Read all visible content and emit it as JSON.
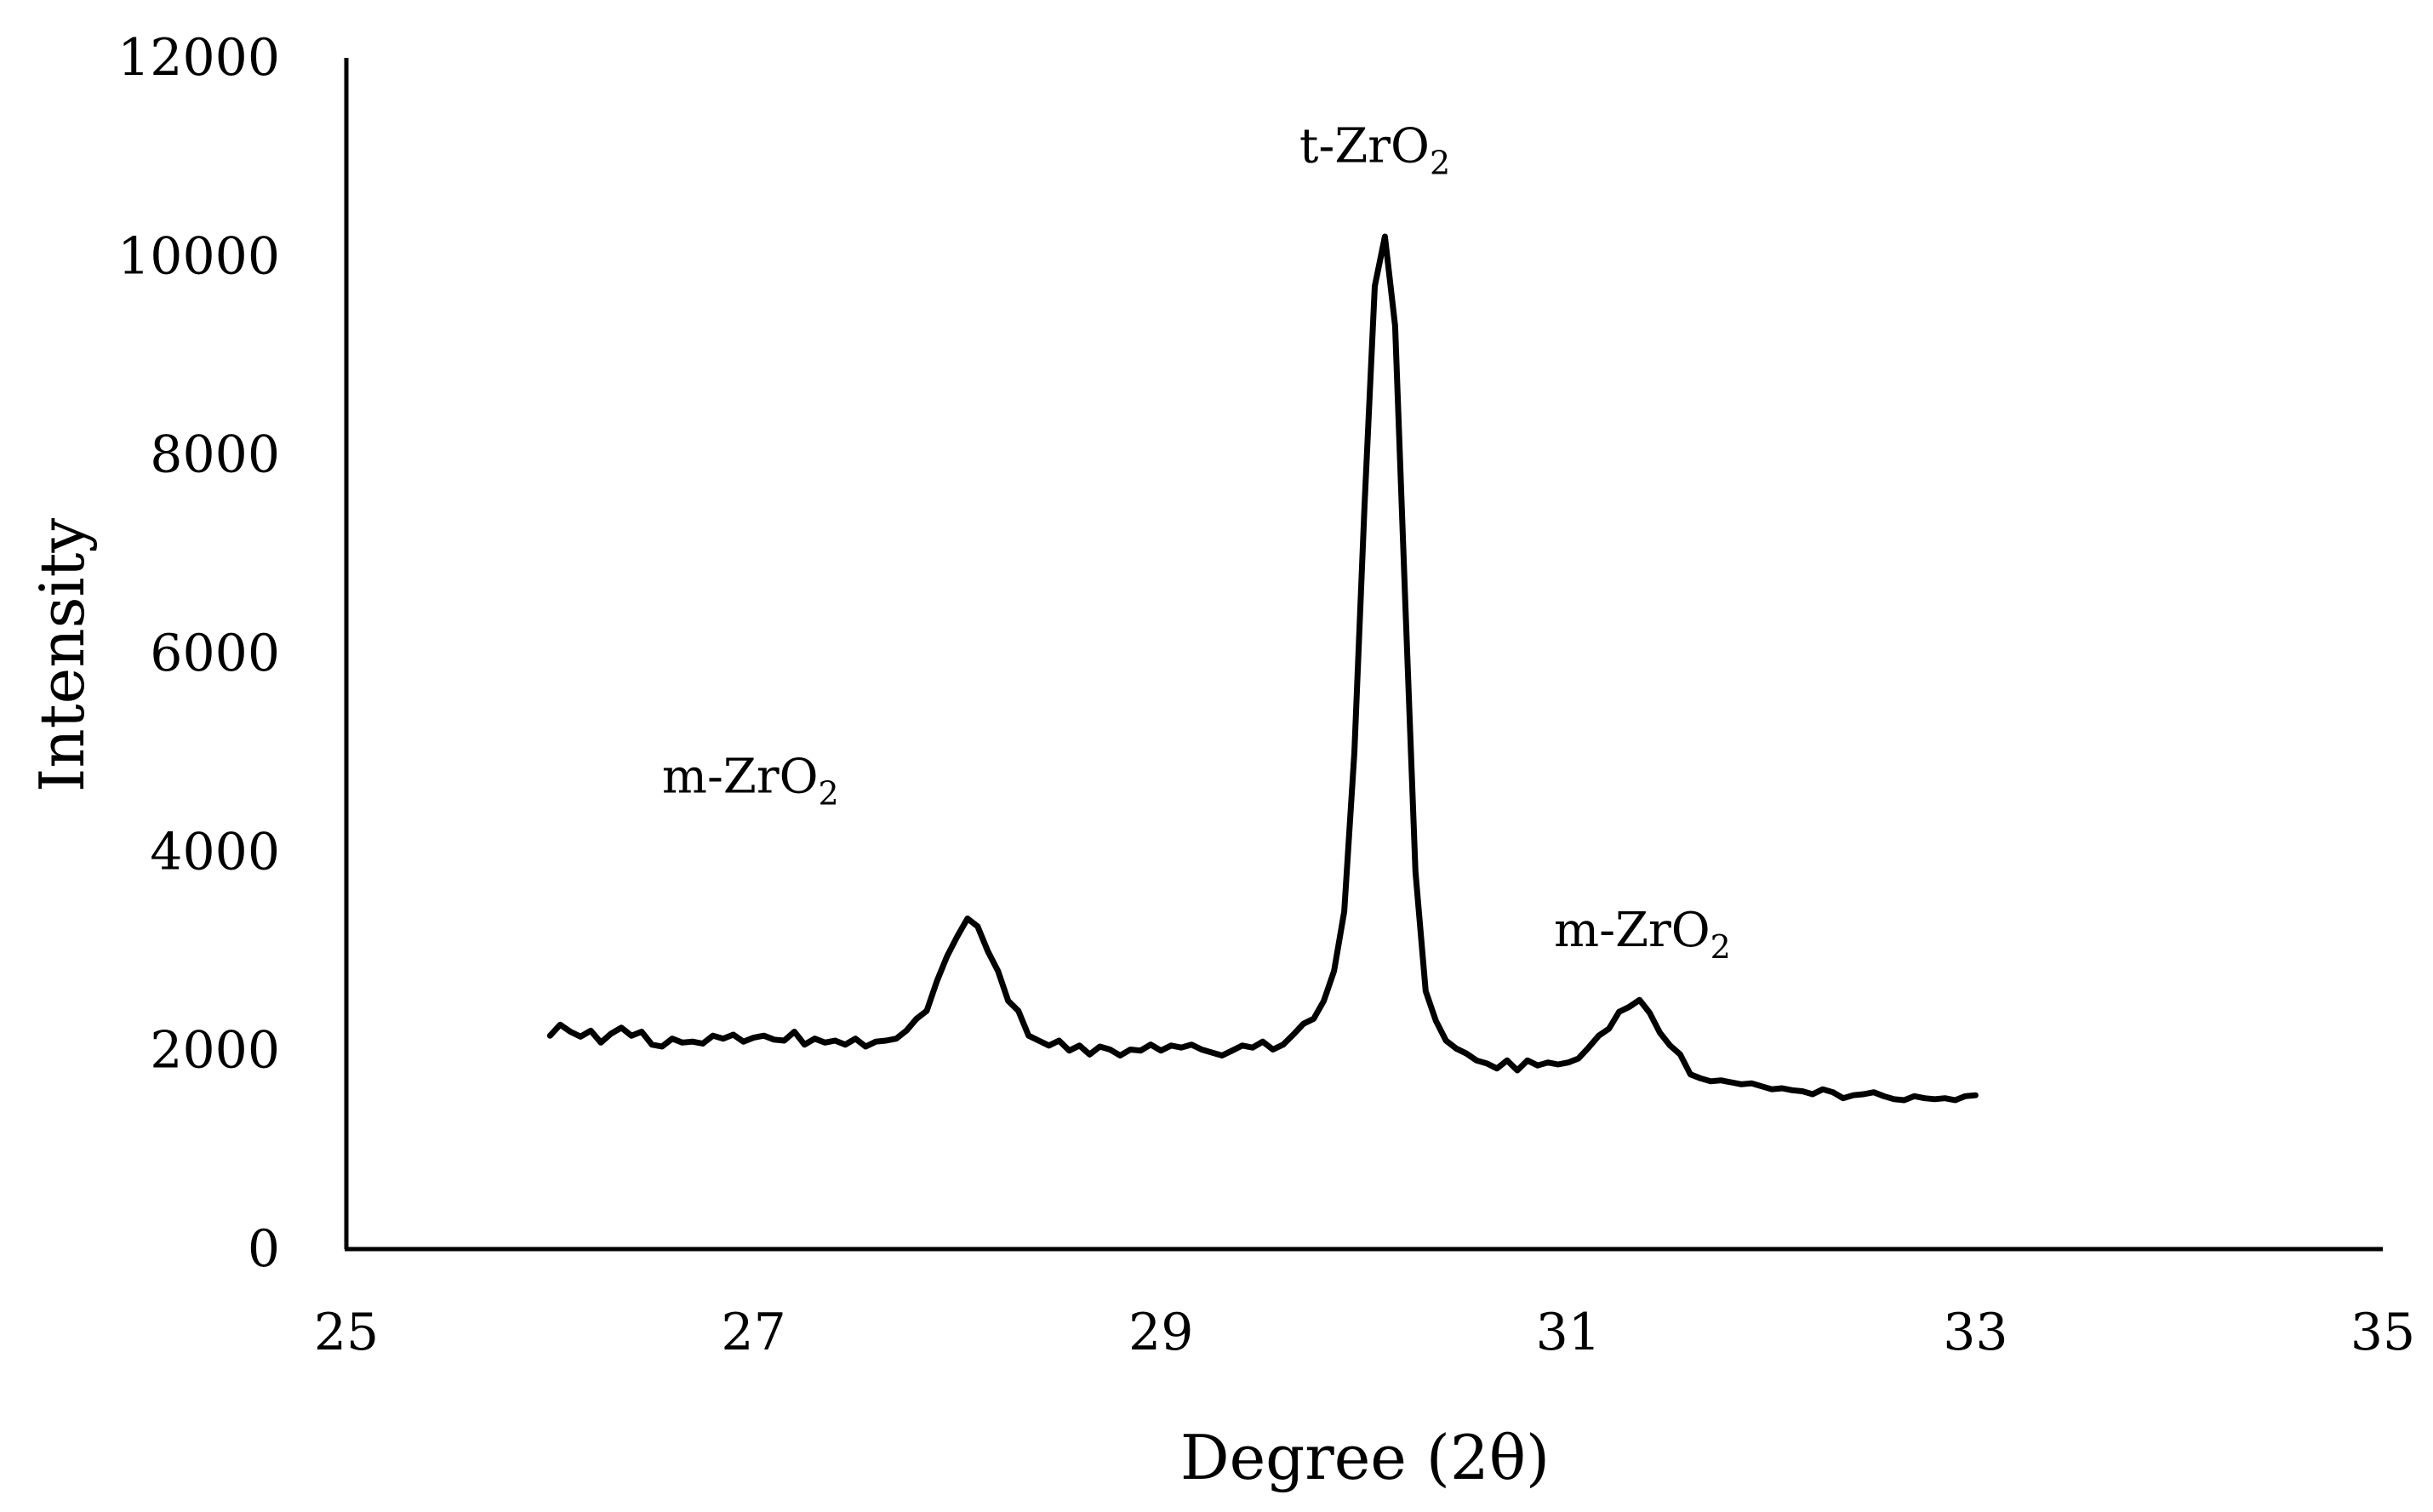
{
  "chart_data": {
    "type": "line",
    "xlabel": "Degree (2θ)",
    "ylabel": "Intensity",
    "xlim": [
      25,
      35
    ],
    "ylim": [
      0,
      12000
    ],
    "xticks": [
      25,
      27,
      29,
      31,
      33,
      35
    ],
    "yticks": [
      0,
      2000,
      4000,
      6000,
      8000,
      10000,
      12000
    ],
    "grid": false,
    "line_color": "#000000",
    "series": [
      {
        "x": [
          26.0,
          26.05,
          26.1,
          26.15,
          26.2,
          26.25,
          26.3,
          26.35,
          26.4,
          26.45,
          26.5,
          26.55,
          26.6,
          26.65,
          26.7,
          26.75,
          26.8,
          26.85,
          26.9,
          26.95,
          27.0,
          27.05,
          27.1,
          27.15,
          27.2,
          27.25,
          27.3,
          27.35,
          27.4,
          27.45,
          27.5,
          27.55,
          27.6,
          27.65,
          27.7,
          27.75,
          27.8,
          27.85,
          27.9,
          27.95,
          28.0,
          28.05,
          28.1,
          28.15,
          28.2,
          28.25,
          28.3,
          28.35,
          28.4,
          28.45,
          28.5,
          28.55,
          28.6,
          28.65,
          28.7,
          28.75,
          28.8,
          28.85,
          28.9,
          28.95,
          29.0,
          29.05,
          29.1,
          29.15,
          29.2,
          29.25,
          29.3,
          29.35,
          29.4,
          29.45,
          29.5,
          29.55,
          29.6,
          29.65,
          29.7,
          29.75,
          29.8,
          29.85,
          29.9,
          29.95,
          30.0,
          30.05,
          30.1,
          30.15,
          30.2,
          30.25,
          30.3,
          30.35,
          30.4,
          30.45,
          30.5,
          30.55,
          30.6,
          30.65,
          30.7,
          30.75,
          30.8,
          30.85,
          30.9,
          30.95,
          31.0,
          31.05,
          31.1,
          31.15,
          31.2,
          31.25,
          31.3,
          31.35,
          31.4,
          31.45,
          31.5,
          31.55,
          31.6,
          31.65,
          31.7,
          31.75,
          31.8,
          31.85,
          31.9,
          31.95,
          32.0,
          32.05,
          32.1,
          32.15,
          32.2,
          32.25,
          32.3,
          32.35,
          32.4,
          32.45,
          32.5,
          32.55,
          32.6,
          32.65,
          32.7,
          32.75,
          32.8,
          32.85,
          32.9,
          32.95,
          33.0
        ],
        "y": [
          2150,
          2260,
          2190,
          2140,
          2200,
          2080,
          2170,
          2230,
          2150,
          2190,
          2060,
          2040,
          2120,
          2080,
          2090,
          2070,
          2150,
          2120,
          2160,
          2090,
          2130,
          2150,
          2110,
          2100,
          2190,
          2060,
          2120,
          2080,
          2100,
          2060,
          2120,
          2040,
          2090,
          2100,
          2120,
          2200,
          2320,
          2400,
          2700,
          2950,
          3150,
          3330,
          3250,
          3000,
          2800,
          2500,
          2400,
          2150,
          2100,
          2050,
          2100,
          2000,
          2050,
          1960,
          2040,
          2010,
          1950,
          2010,
          2000,
          2060,
          2000,
          2050,
          2030,
          2060,
          2010,
          1980,
          1950,
          2000,
          2050,
          2030,
          2090,
          2010,
          2060,
          2160,
          2270,
          2320,
          2500,
          2800,
          3400,
          5000,
          7500,
          9700,
          10200,
          9300,
          6500,
          3800,
          2600,
          2300,
          2100,
          2020,
          1970,
          1900,
          1870,
          1820,
          1900,
          1800,
          1900,
          1850,
          1880,
          1860,
          1880,
          1920,
          2030,
          2150,
          2220,
          2390,
          2440,
          2510,
          2380,
          2180,
          2050,
          1960,
          1760,
          1720,
          1690,
          1700,
          1680,
          1660,
          1670,
          1640,
          1610,
          1620,
          1600,
          1590,
          1560,
          1610,
          1580,
          1520,
          1550,
          1560,
          1580,
          1540,
          1510,
          1500,
          1540,
          1520,
          1510,
          1520,
          1500,
          1540,
          1550
        ]
      }
    ],
    "annotations": [
      {
        "base": "m-ZrO",
        "sub": "2",
        "x": 26.55,
        "y": 4600
      },
      {
        "base": "t-ZrO",
        "sub": "2",
        "x": 29.68,
        "y": 10950
      },
      {
        "base": "m-ZrO",
        "sub": "2",
        "x": 30.93,
        "y": 3050
      }
    ]
  }
}
